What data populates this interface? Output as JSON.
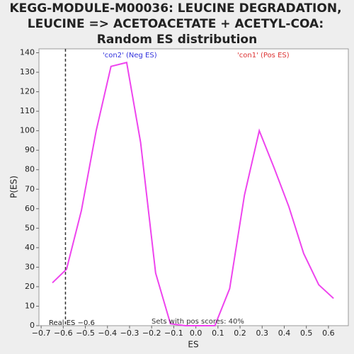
{
  "chart_data": {
    "type": "line",
    "title": [
      "KEGG-MODULE-M00036: LEUCINE DEGRADATION,",
      "LEUCINE => ACETOACETATE + ACETYL-COA:",
      "Random ES distribution"
    ],
    "xlabel": "ES",
    "ylabel": "P(ES)",
    "x": [
      -0.649,
      -0.585,
      -0.518,
      -0.451,
      -0.384,
      -0.313,
      -0.25,
      -0.182,
      -0.115,
      -0.048,
      0.019,
      0.086,
      0.153,
      0.22,
      0.287,
      0.354,
      0.421,
      0.488,
      0.556,
      0.623
    ],
    "series": [
      {
        "name": "P(ES)",
        "color": "#ee44ee",
        "values": [
          22,
          29,
          59,
          100,
          133,
          135,
          94,
          27,
          1,
          0,
          0,
          0,
          19,
          67,
          100,
          81,
          61,
          37,
          21,
          14
        ]
      }
    ],
    "xlim": [
      -0.71,
      0.69
    ],
    "ylim": [
      0,
      142
    ],
    "xticks": [
      {
        "value": -0.7,
        "label": "−0.7"
      },
      {
        "value": -0.6,
        "label": "−0.6"
      },
      {
        "value": -0.5,
        "label": "−0.5"
      },
      {
        "value": -0.4,
        "label": "−0.4"
      },
      {
        "value": -0.3,
        "label": "−0.3"
      },
      {
        "value": -0.2,
        "label": "−0.2"
      },
      {
        "value": -0.1,
        "label": "−0.1"
      },
      {
        "value": 0,
        "label": "0.0"
      },
      0.1,
      0.2,
      0.3,
      0.4,
      0.5,
      0.6
    ],
    "yticks": [
      0,
      10,
      20,
      30,
      40,
      50,
      60,
      70,
      80,
      90,
      100,
      110,
      120,
      130,
      140
    ],
    "real_es": {
      "value": -0.59,
      "label": "Real ES −0.6"
    },
    "annotations": [
      {
        "text": "'con2' (Neg ES)",
        "color": "#3333dd"
      },
      {
        "text": "'con1' (Pos ES)",
        "color": "#dd3333"
      },
      {
        "text": "Sets with pos scores: 40%",
        "color": "#333333"
      }
    ]
  }
}
